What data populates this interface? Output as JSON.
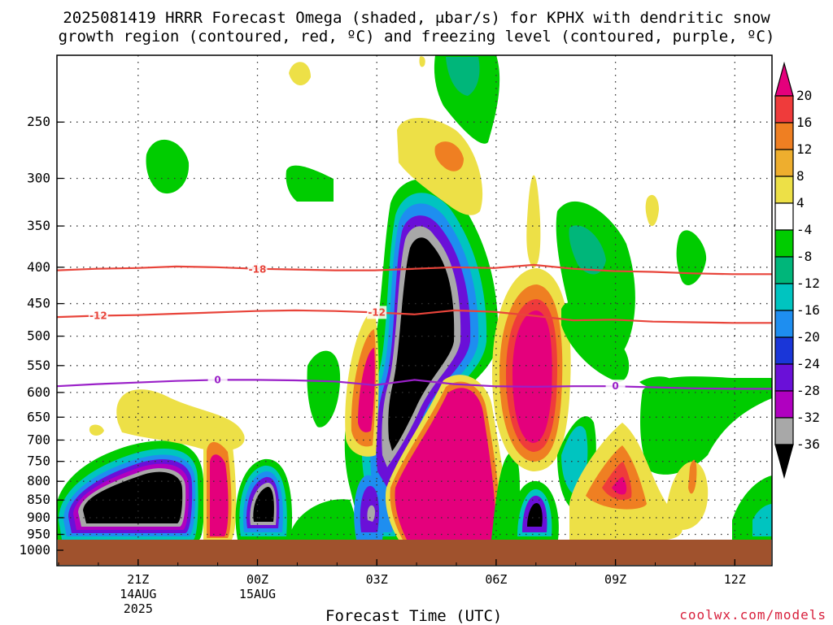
{
  "title_line1": "2025081419 HRRR Forecast Omega (shaded, μbar/s) for KPHX with dendritic snow",
  "title_line2": "growth region (contoured, red, ºC) and freezing level (contoured, purple, ºC)",
  "chart_data": {
    "type": "heatmap",
    "title": "2025081419 HRRR Forecast Omega (shaded, μbar/s) for KPHX with dendritic snow growth region (contoured, red, ºC) and freezing level (contoured, purple, ºC)",
    "xlabel": "Forecast Time (UTC)",
    "ylabel": "",
    "y_scale": "log-pressure (inverted)",
    "y_ticks": [
      250,
      300,
      350,
      400,
      450,
      500,
      550,
      600,
      650,
      700,
      750,
      800,
      850,
      900,
      950,
      1000
    ],
    "x_ticks": [
      {
        "label": "21Z",
        "sub1": "14AUG",
        "sub2": "2025",
        "hour": 2
      },
      {
        "label": "00Z",
        "sub1": "15AUG",
        "sub2": "",
        "hour": 5
      },
      {
        "label": "03Z",
        "sub1": "",
        "sub2": "",
        "hour": 8
      },
      {
        "label": "06Z",
        "sub1": "",
        "sub2": "",
        "hour": 11
      },
      {
        "label": "09Z",
        "sub1": "",
        "sub2": "",
        "hour": 14
      },
      {
        "label": "12Z",
        "sub1": "",
        "sub2": "",
        "hour": 17
      }
    ],
    "xlim_hours": [
      0,
      18
    ],
    "ylim_hpa": [
      200,
      1000
    ],
    "grid": true,
    "colorbar": {
      "labels": [
        "20",
        "16",
        "12",
        "8",
        "4",
        "-4",
        "-8",
        "-12",
        "-16",
        "-20",
        "-24",
        "-28",
        "-32",
        "-36"
      ],
      "colors": [
        "#e4007c",
        "#ef3b3b",
        "#ef7f22",
        "#eeae2e",
        "#ede047",
        "#ffffff",
        "#00cc00",
        "#00b67a",
        "#00c4c0",
        "#1e8ef0",
        "#1a36d8",
        "#6a10d8",
        "#b000c0",
        "#a8a8a8",
        "#000000"
      ]
    },
    "omega_features": [
      {
        "name": "strong upward motion",
        "level": "<-36",
        "center_hour": 1.8,
        "center_hpa": 860
      },
      {
        "name": "strong upward motion",
        "level": "<-36",
        "center_hour": 5.2,
        "center_hpa": 850
      },
      {
        "name": "strong upward motion",
        "level": "<-36",
        "center_hour": 9.5,
        "center_hpa": 500
      },
      {
        "name": "strong downward motion",
        "level": ">20",
        "center_hour": 3.9,
        "center_hpa": 820
      },
      {
        "name": "strong downward motion",
        "level": ">20",
        "center_hour": 8.0,
        "center_hpa": 560
      },
      {
        "name": "strong downward motion",
        "level": ">20",
        "center_hour": 10.5,
        "center_hpa": 820
      },
      {
        "name": "strong downward motion",
        "level": ">20",
        "center_hour": 12.8,
        "center_hpa": 520
      }
    ],
    "series": [
      {
        "name": "-18",
        "color": "#e8443a",
        "values_hpa": [
          404,
          402,
          401,
          399,
          400,
          402,
          403,
          404,
          404,
          402,
          400,
          401,
          397,
          402,
          405,
          406,
          408,
          409,
          409
        ]
      },
      {
        "name": "-12",
        "color": "#e8443a",
        "values_hpa": [
          470,
          468,
          467,
          465,
          463,
          461,
          460,
          461,
          463,
          466,
          460,
          462,
          468,
          475,
          474,
          477,
          478,
          479,
          479
        ]
      },
      {
        "name": "0",
        "color": "#9a20c8",
        "values_hpa": [
          588,
          584,
          581,
          578,
          576,
          576,
          577,
          579,
          586,
          576,
          584,
          588,
          589,
          588,
          588,
          590,
          592,
          593,
          593
        ]
      }
    ],
    "contour_labels": [
      {
        "text": "-18",
        "hour": 5.0,
        "hpa": 403
      },
      {
        "text": "-12",
        "hour": 1.0,
        "hpa": 468
      },
      {
        "text": "-12",
        "hour": 8.0,
        "hpa": 463
      },
      {
        "text": "0",
        "hour": 4.0,
        "hpa": 576
      },
      {
        "text": "0",
        "hour": 14.0,
        "hpa": 588
      }
    ],
    "ground": {
      "color": "#a0522d",
      "above_hpa": 970
    }
  },
  "xlabel": "Forecast Time (UTC)",
  "credit": "coolwx.com/models"
}
